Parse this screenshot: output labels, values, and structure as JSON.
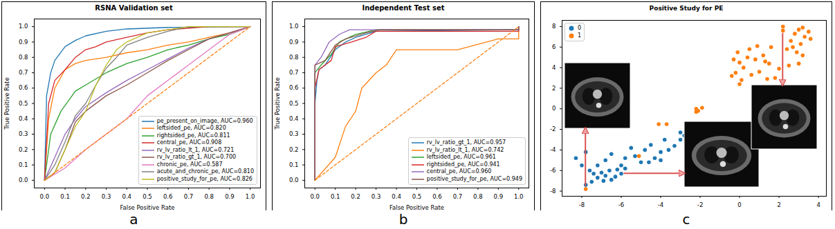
{
  "chart_data": [
    {
      "type": "line",
      "title": "RSNA Validation set",
      "caption": "a",
      "x_label": "False Positive Rate",
      "y_label": "True Positive Rate",
      "xlim": [
        -0.05,
        1.05
      ],
      "ylim": [
        -0.05,
        1.05
      ],
      "xticks": [
        {
          "value": 0,
          "label": "0.0"
        },
        0.1,
        0.2,
        0.3,
        0.4,
        0.5,
        0.6,
        0.7,
        0.8,
        0.9,
        {
          "value": 1,
          "label": "1.0"
        }
      ],
      "yticks": [
        {
          "value": 0,
          "label": "0.0"
        },
        0.1,
        0.2,
        0.3,
        0.4,
        0.5,
        0.6,
        0.7,
        0.8,
        0.9,
        {
          "value": 1,
          "label": "1.0"
        }
      ],
      "grid": false,
      "legend": "lower right",
      "series": [
        {
          "name": "pe_present_on_image, AUC=0.960",
          "color": "#1f77b4",
          "x": [
            0,
            0.01,
            0.03,
            0.05,
            0.1,
            0.15,
            0.2,
            0.3,
            0.4,
            0.6,
            1
          ],
          "values": [
            0,
            0.55,
            0.7,
            0.78,
            0.87,
            0.91,
            0.94,
            0.97,
            0.985,
            0.995,
            1
          ]
        },
        {
          "name": "leftsided_pe, AUC=0.820",
          "color": "#ff7f0e",
          "x": [
            0,
            0.02,
            0.05,
            0.1,
            0.15,
            0.2,
            0.3,
            0.4,
            0.5,
            0.6,
            0.7,
            0.8,
            0.9,
            1
          ],
          "values": [
            0,
            0.4,
            0.6,
            0.72,
            0.76,
            0.78,
            0.8,
            0.83,
            0.85,
            0.88,
            0.9,
            0.93,
            0.96,
            1
          ]
        },
        {
          "name": "rightsided_pe, AUC=0.811",
          "color": "#2ca02c",
          "x": [
            0,
            0.03,
            0.08,
            0.15,
            0.2,
            0.3,
            0.4,
            0.5,
            0.6,
            0.7,
            0.8,
            0.9,
            1
          ],
          "values": [
            0,
            0.3,
            0.45,
            0.58,
            0.62,
            0.7,
            0.76,
            0.8,
            0.85,
            0.88,
            0.92,
            0.95,
            1
          ]
        },
        {
          "name": "central_pe, AUC=0.908",
          "color": "#d62728",
          "x": [
            0,
            0.02,
            0.05,
            0.1,
            0.15,
            0.2,
            0.25,
            0.3,
            0.4,
            0.5,
            0.6,
            0.8,
            1
          ],
          "values": [
            0,
            0.5,
            0.65,
            0.72,
            0.8,
            0.85,
            0.87,
            0.9,
            0.93,
            0.96,
            0.98,
            1,
            1
          ]
        },
        {
          "name": "rv_lv_ratio_lt_1, AUC=0.721",
          "color": "#9467bd",
          "x": [
            0,
            0.05,
            0.1,
            0.15,
            0.2,
            0.3,
            0.4,
            0.5,
            0.6,
            0.7,
            0.8,
            0.9,
            1
          ],
          "values": [
            0,
            0.15,
            0.3,
            0.4,
            0.48,
            0.57,
            0.65,
            0.72,
            0.79,
            0.86,
            0.92,
            0.96,
            1
          ]
        },
        {
          "name": "rv_lv_ratio_gt_1, AUC=0.700",
          "color": "#8c564b",
          "x": [
            0,
            0.05,
            0.1,
            0.15,
            0.2,
            0.3,
            0.4,
            0.5,
            0.6,
            0.7,
            0.8,
            0.9,
            1
          ],
          "values": [
            0,
            0.05,
            0.2,
            0.38,
            0.45,
            0.55,
            0.62,
            0.7,
            0.78,
            0.85,
            0.92,
            0.96,
            1
          ]
        },
        {
          "name": "chronic_pe, AUC=0.587",
          "color": "#e377c2",
          "x": [
            0,
            0.1,
            0.2,
            0.3,
            0.4,
            0.5,
            0.6,
            0.7,
            0.8,
            0.9,
            1
          ],
          "values": [
            0,
            0.08,
            0.2,
            0.3,
            0.4,
            0.55,
            0.65,
            0.75,
            0.85,
            0.95,
            1
          ]
        },
        {
          "name": "acute_and_chronic_pe, AUC=0.810",
          "color": "#7f7f7f",
          "x": [
            0,
            0.05,
            0.1,
            0.15,
            0.2,
            0.25,
            0.3,
            0.35,
            0.4,
            0.5,
            0.6,
            0.7,
            1
          ],
          "values": [
            0,
            0.1,
            0.25,
            0.42,
            0.5,
            0.62,
            0.73,
            0.8,
            0.88,
            0.93,
            0.97,
            1,
            1
          ]
        },
        {
          "name": "positive_study_for_pe, AUC=0.826",
          "color": "#bcbd22",
          "x": [
            0,
            0.05,
            0.1,
            0.15,
            0.2,
            0.25,
            0.3,
            0.35,
            0.4,
            0.5,
            0.6,
            0.7,
            1
          ],
          "values": [
            0,
            0.05,
            0.2,
            0.35,
            0.45,
            0.62,
            0.75,
            0.85,
            0.9,
            0.96,
            0.98,
            1,
            1
          ]
        },
        {
          "color": "#ff7f0e",
          "line_style": "dashed",
          "x": [
            0,
            1
          ],
          "values": [
            0,
            1
          ]
        }
      ]
    },
    {
      "type": "line",
      "title": "Independent Test set",
      "caption": "b",
      "x_label": "False Positive Rate",
      "y_label": "True Positive Rate",
      "xlim": [
        -0.05,
        1.05
      ],
      "ylim": [
        -0.05,
        1.05
      ],
      "xticks": [
        {
          "value": 0,
          "label": "0.0"
        },
        0.1,
        0.2,
        0.3,
        0.4,
        0.5,
        0.6,
        0.7,
        0.8,
        0.9,
        {
          "value": 1,
          "label": "1.0"
        }
      ],
      "yticks": [
        {
          "value": 0,
          "label": "0.0"
        },
        0.1,
        0.2,
        0.3,
        0.4,
        0.5,
        0.6,
        0.7,
        0.8,
        0.9,
        {
          "value": 1,
          "label": "1.0"
        }
      ],
      "grid": false,
      "legend": "lower right",
      "series": [
        {
          "name": "rv_lv_ratio_gt_1, AUC=0.957",
          "color": "#1f77b4",
          "x": [
            0,
            0,
            0.01,
            0.02,
            0.05,
            0.1,
            0.15,
            0.2,
            0.3,
            1,
            1
          ],
          "values": [
            0,
            0.5,
            0.65,
            0.72,
            0.75,
            0.85,
            0.9,
            0.93,
            0.97,
            0.98,
            1
          ]
        },
        {
          "name": "rv_lv_ratio_lt_1, AUC=0.742",
          "color": "#ff7f0e",
          "x": [
            0,
            0.1,
            0.15,
            0.2,
            0.23,
            0.3,
            0.35,
            0.4,
            0.7,
            0.9,
            1,
            1
          ],
          "values": [
            0,
            0.15,
            0.35,
            0.45,
            0.6,
            0.7,
            0.75,
            0.85,
            0.85,
            0.92,
            0.92,
            1
          ]
        },
        {
          "name": "leftsided_pe, AUC=0.961",
          "color": "#2ca02c",
          "x": [
            0,
            0,
            0.03,
            0.08,
            0.12,
            0.2,
            0.3,
            1,
            1
          ],
          "values": [
            0,
            0.7,
            0.75,
            0.82,
            0.9,
            0.95,
            0.98,
            0.98,
            1
          ]
        },
        {
          "name": "rightsided_pe, AUC=0.941",
          "color": "#d62728",
          "x": [
            0,
            0,
            0.02,
            0.05,
            0.08,
            0.1,
            0.18,
            0.25,
            0.3,
            1,
            1
          ],
          "values": [
            0,
            0.6,
            0.72,
            0.75,
            0.78,
            0.87,
            0.9,
            0.93,
            0.97,
            0.97,
            1
          ]
        },
        {
          "name": "central_pe, AUC=0.960",
          "color": "#9467bd",
          "x": [
            0,
            0,
            0.03,
            0.07,
            0.12,
            0.17,
            1,
            1
          ],
          "values": [
            0,
            0.75,
            0.8,
            0.9,
            0.95,
            0.98,
            0.98,
            1
          ]
        },
        {
          "name": "positive_study_for_pe, AUC=0.949",
          "color": "#8c564b",
          "x": [
            0,
            0,
            0.05,
            0.1,
            0.15,
            0.25,
            0.32,
            1,
            1
          ],
          "values": [
            0,
            0.75,
            0.78,
            0.88,
            0.92,
            0.96,
            0.98,
            0.98,
            1
          ]
        },
        {
          "color": "#ff7f0e",
          "line_style": "dashed",
          "x": [
            0,
            1
          ],
          "values": [
            0,
            1
          ]
        }
      ]
    },
    {
      "type": "scatter",
      "title": "Positive Study for PE",
      "caption": "c",
      "xlim": [
        -9,
        4.4
      ],
      "ylim": [
        -8.5,
        8.6
      ],
      "xticks": [
        -8,
        -6,
        -4,
        -2,
        0,
        2,
        4
      ],
      "yticks": [
        -8,
        -6,
        -4,
        -2,
        0,
        2,
        4,
        6,
        8
      ],
      "grid": false,
      "legend": "upper left",
      "series": [
        {
          "name": "0",
          "color": "#1f77b4",
          "x": [
            -8.3,
            -8.0,
            -7.8,
            -7.6,
            -7.4,
            -7.2,
            -7.0,
            -6.8,
            -6.6,
            -6.5,
            -6.9,
            -7.5,
            -6.2,
            -6.3,
            -7.8,
            -7.2,
            -6.8,
            -6.5,
            -6.0,
            -5.8,
            -5.5,
            -5.3,
            -5.0,
            -4.8,
            -4.5,
            -4.3,
            -4.0,
            -3.8,
            -3.6,
            -3.3,
            -3.0,
            -2.8,
            -2.5,
            -5.8,
            -6.0,
            -4.6,
            -4.0,
            -3.0
          ],
          "values": [
            -4.8,
            -5.5,
            -4.2,
            -6.0,
            -6.3,
            -6.7,
            -6.2,
            -6.5,
            -6.0,
            -6.9,
            -7.0,
            -7.1,
            -5.9,
            -6.6,
            -7.4,
            -5.5,
            -5.0,
            -4.4,
            -5.5,
            -4.8,
            -3.8,
            -4.6,
            -5.2,
            -4.0,
            -3.5,
            -4.8,
            -4.2,
            -3.0,
            -4.0,
            -3.6,
            -3.0,
            -2.6,
            -2.8,
            -5.8,
            -6.3,
            -5.2,
            -5.0,
            -2.3
          ]
        },
        {
          "name": "1",
          "color": "#ff7f0e",
          "x": [
            -7.8,
            -5.1,
            -3.7,
            -4.1,
            -2.2,
            -2.1,
            -1.9,
            -2.2,
            -0.2,
            0,
            -0.1,
            0.2,
            0.4,
            0.6,
            0.8,
            1.0,
            1.2,
            0.1,
            1.5,
            1.8,
            2.0,
            2.2,
            2.2,
            2.4,
            2.6,
            2.8,
            3.0,
            3.1,
            3.3,
            3.5,
            2.9,
            3.2,
            3.0,
            2.5,
            -0.3,
            0.5,
            0.0,
            1.6,
            1.4,
            3.2,
            3.6,
            2.7,
            -0.4,
            0.9,
            1.3
          ],
          "values": [
            -7.8,
            -4.6,
            -1.5,
            -1.5,
            0.0,
            -0.2,
            0.1,
            -0.3,
            3.5,
            4.5,
            5.5,
            4.0,
            5.0,
            3.3,
            4.8,
            3.6,
            5.2,
            2.8,
            4.4,
            3.0,
            3.9,
            8.0,
            7.6,
            5.8,
            6.6,
            7.3,
            7.7,
            6.3,
            7.0,
            7.5,
            5.5,
            5.2,
            4.4,
            4.2,
            4.8,
            5.8,
            2.4,
            6.0,
            2.9,
            7.9,
            6.8,
            6.0,
            3.2,
            6.1,
            4.6
          ]
        }
      ]
    }
  ]
}
